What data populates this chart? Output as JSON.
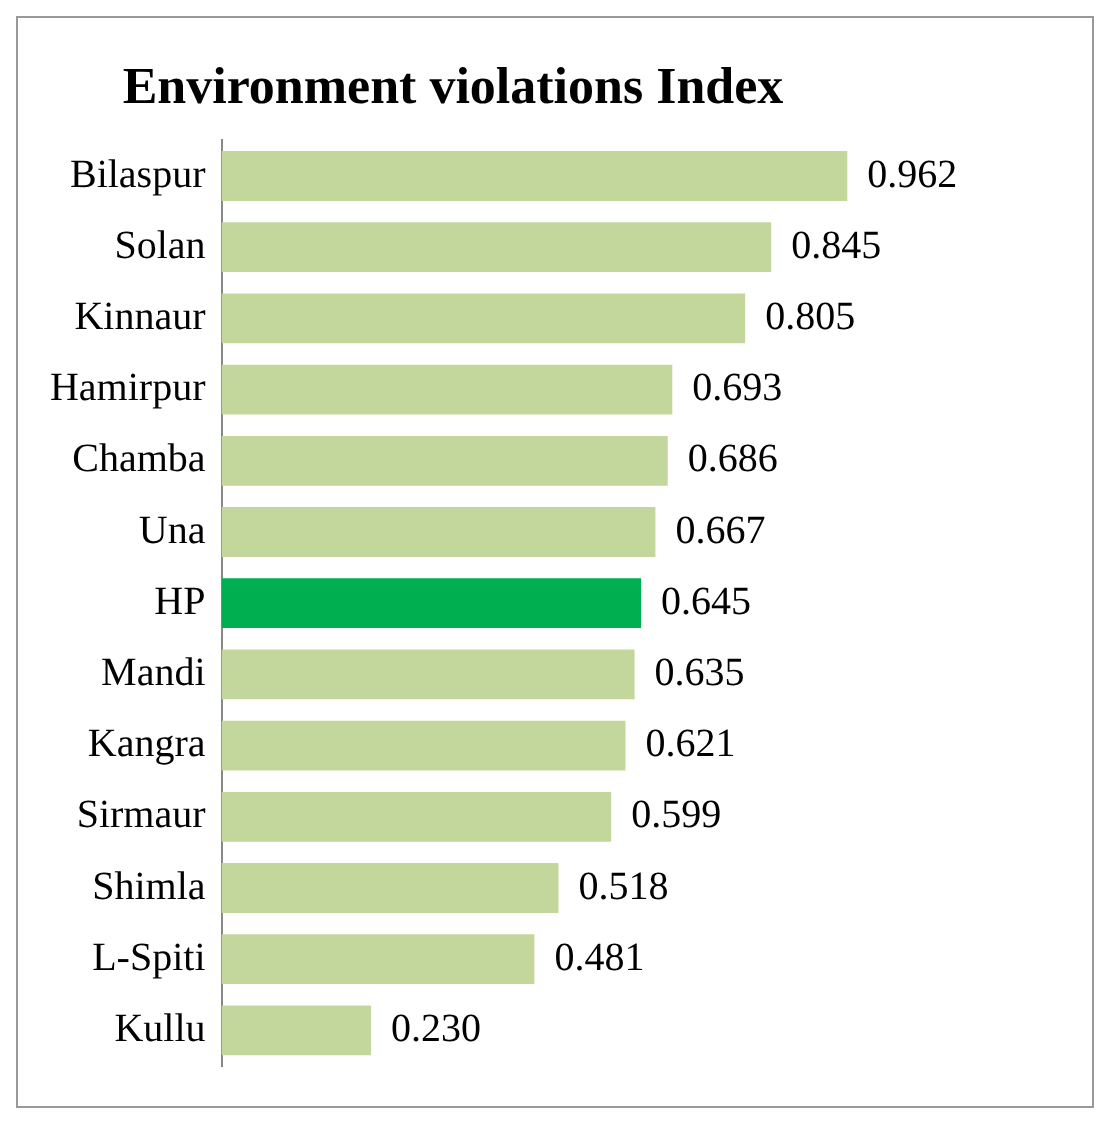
{
  "chart_data": {
    "type": "bar",
    "orientation": "horizontal",
    "title": "Environment violations Index",
    "categories": [
      "Bilaspur",
      "Solan",
      "Kinnaur",
      "Hamirpur",
      "Chamba",
      "Una",
      "HP",
      "Mandi",
      "Kangra",
      "Sirmaur",
      "Shimla",
      "L-Spiti",
      "Kullu"
    ],
    "values": [
      0.962,
      0.845,
      0.805,
      0.693,
      0.686,
      0.667,
      0.645,
      0.635,
      0.621,
      0.599,
      0.518,
      0.481,
      0.23
    ],
    "colors": [
      "#c3d69b",
      "#c3d69b",
      "#c3d69b",
      "#c3d69b",
      "#c3d69b",
      "#c3d69b",
      "#00b050",
      "#c3d69b",
      "#c3d69b",
      "#c3d69b",
      "#c3d69b",
      "#c3d69b",
      "#c3d69b"
    ],
    "value_labels": [
      "0.962",
      "0.845",
      "0.805",
      "0.693",
      "0.686",
      "0.667",
      "0.645",
      "0.635",
      "0.621",
      "0.599",
      "0.518",
      "0.481",
      "0.230"
    ],
    "legend": false
  }
}
